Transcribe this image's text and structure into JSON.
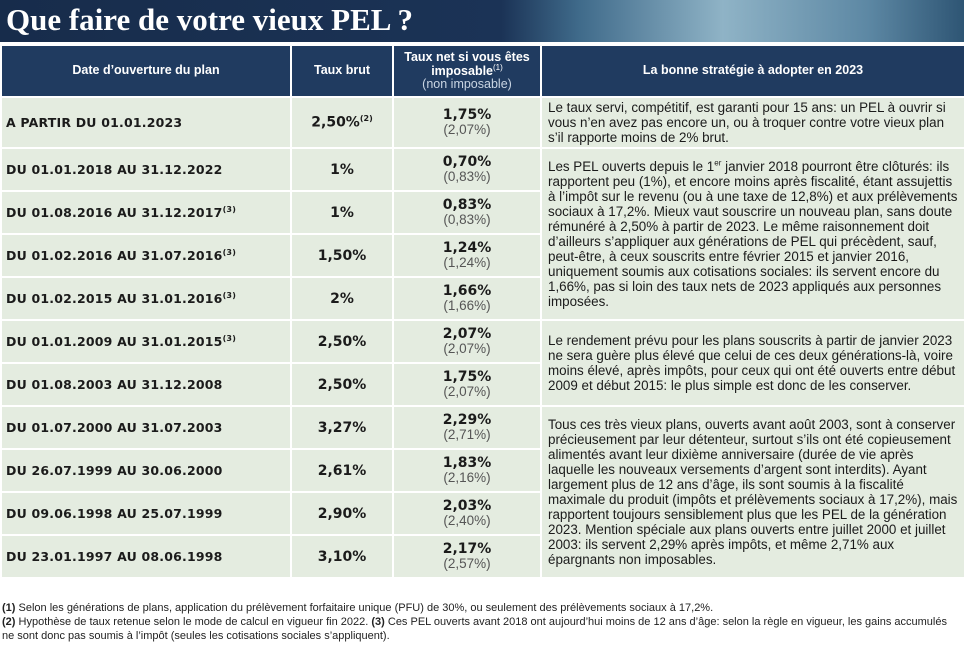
{
  "header": {
    "title": "Que faire de votre vieux PEL ?"
  },
  "table": {
    "columns": {
      "date": "Date d’ouverture du plan",
      "gross": "Taux brut",
      "net": "Taux net si vous êtes imposable",
      "net_note": "(1)",
      "net_alt": "(non imposable)",
      "strategy": "La bonne stratégie à adopter en 2023"
    },
    "rows": [
      {
        "date": "A PARTIR DU 01.01.2023",
        "gross": "2,50%",
        "gross_note": "(2)",
        "net": "1,75%",
        "net_alt": "(2,07%)"
      },
      {
        "date": "DU 01.01.2018 AU 31.12.2022",
        "gross": "1%",
        "net": "0,70%",
        "net_alt": "(0,83%)"
      },
      {
        "date": "DU 01.08.2016 AU 31.12.2017",
        "date_note": "(3)",
        "gross": "1%",
        "net": "0,83%",
        "net_alt": "(0,83%)"
      },
      {
        "date": "DU 01.02.2016 AU 31.07.2016",
        "date_note": "(3)",
        "gross": "1,50%",
        "net": "1,24%",
        "net_alt": "(1,24%)"
      },
      {
        "date": "DU 01.02.2015 AU 31.01.2016",
        "date_note": "(3)",
        "gross": "2%",
        "net": "1,66%",
        "net_alt": "(1,66%)"
      },
      {
        "date": "DU 01.01.2009 AU 31.01.2015",
        "date_note": "(3)",
        "gross": "2,50%",
        "net": "2,07%",
        "net_alt": "(2,07%)"
      },
      {
        "date": "DU 01.08.2003 AU 31.12.2008",
        "gross": "2,50%",
        "net": "1,75%",
        "net_alt": "(2,07%)"
      },
      {
        "date": "DU 01.07.2000 AU 31.07.2003",
        "gross": "3,27%",
        "net": "2,29%",
        "net_alt": "(2,71%)"
      },
      {
        "date": "DU 26.07.1999 AU 30.06.2000",
        "gross": "2,61%",
        "net": "1,83%",
        "net_alt": "(2,16%)"
      },
      {
        "date": "DU 09.06.1998 AU 25.07.1999",
        "gross": "2,90%",
        "net": "2,03%",
        "net_alt": "(2,40%)"
      },
      {
        "date": "DU 23.01.1997 AU 08.06.1998",
        "gross": "3,10%",
        "net": "2,17%",
        "net_alt": "(2,57%)"
      }
    ],
    "strategies": [
      {
        "text": "Le taux servi, compétitif, est garanti pour 15 ans: un PEL à ouvrir si vous n’en avez pas encore un, ou à troquer contre votre vieux plan s’il rapporte moins de 2% brut."
      },
      {
        "text": "Les PEL ouverts depuis le 1",
        "sup": "er",
        "text_after": " janvier 2018 pourront être clôturés: ils rapportent peu (1%), et encore moins après fiscalité, étant assujettis à l’impôt sur le revenu (ou à une taxe de 12,8%) et aux prélèvements sociaux à 17,2%. Mieux vaut souscrire un nouveau plan, sans doute rémunéré à 2,50% à partir de 2023. Le même raisonnement doit d’ailleurs s’appliquer aux générations de PEL qui précèdent, sauf, peut-être, à ceux souscrits entre février 2015 et janvier 2016, uniquement soumis aux cotisations sociales: ils servent encore du 1,66%, pas si loin des taux nets de 2023 appliqués aux personnes imposées."
      },
      {
        "text": "Le rendement prévu pour les plans souscrits à partir de janvier 2023 ne sera guère plus élevé que celui de ces deux générations-là, voire moins élevé, après impôts, pour ceux qui ont été ouverts entre début 2009 et début 2015: le plus simple est donc de les conserver."
      },
      {
        "text": "Tous ces très vieux plans, ouverts avant août 2003, sont à conserver précieusement par leur détenteur, surtout s’ils ont été copieusement alimentés avant leur dixième anniversaire (durée de vie après laquelle les nouveaux versements d’argent sont interdits). Ayant largement plus de 12 ans d’âge, ils sont soumis à la fiscalité maximale du produit (impôts et prélèvements sociaux à 17,2%), mais rapportent toujours sensiblement plus que les PEL de la génération 2023. Mention spéciale aux plans ouverts entre juillet 2000 et juillet 2003: ils servent 2,29% après impôts, et même 2,71% aux épargnants non imposables."
      }
    ]
  },
  "footnotes": [
    {
      "mark": "(1)",
      "text": " Selon les générations de plans, application du prélèvement forfaitaire unique (PFU) de 30%, ou seulement des prélèvements sociaux à 17,2%."
    },
    {
      "mark": "(2)",
      "text": " Hypothèse de taux retenue selon le mode de calcul en vigueur fin 2022. "
    },
    {
      "mark": "(3)",
      "text": " Ces PEL ouverts avant 2018 ont aujourd’hui moins de 12 ans d’âge: selon la règle en vigueur, les gains accumulés ne sont donc pas soumis à l’impôt (seules les cotisations sociales s’appliquent)."
    }
  ]
}
